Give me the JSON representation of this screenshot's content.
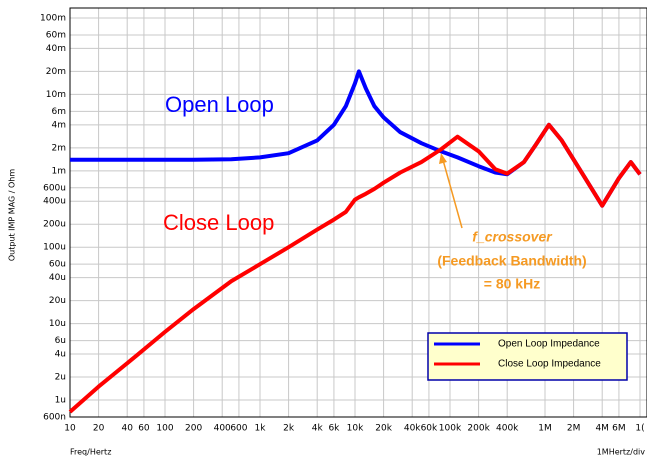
{
  "chart_data": {
    "type": "line",
    "ylabel": "Output IMP MAG / Ohm",
    "xlabel": "Freq/Hertz",
    "xnote": "1MHertz/div",
    "log_x": true,
    "log_y": true,
    "grid": true,
    "xlim": [
      10,
      10000000
    ],
    "ylim": [
      6e-07,
      0.1
    ],
    "xticks": [
      10,
      20,
      40,
      60,
      100,
      200,
      400,
      600,
      {
        "value": 1000,
        "label": "1k"
      },
      {
        "value": 2000,
        "label": "2k"
      },
      {
        "value": 4000,
        "label": "4k"
      },
      {
        "value": 6000,
        "label": "6k"
      },
      {
        "value": 10000,
        "label": "10k"
      },
      {
        "value": 20000,
        "label": "20k"
      },
      {
        "value": 40000,
        "label": "40k"
      },
      {
        "value": 60000,
        "label": "60k"
      },
      {
        "value": 100000,
        "label": "100k"
      },
      {
        "value": 200000,
        "label": "200k"
      },
      {
        "value": 400000,
        "label": "400k"
      },
      {
        "value": 1000000,
        "label": "1M"
      },
      {
        "value": 2000000,
        "label": "2M"
      },
      {
        "value": 4000000,
        "label": "4M"
      },
      {
        "value": 6000000,
        "label": "6M"
      },
      {
        "value": 10000000,
        "label": "1("
      }
    ],
    "yticks": [
      {
        "value": 0.1,
        "label": "100m"
      },
      {
        "value": 0.06,
        "label": "60m"
      },
      {
        "value": 0.04,
        "label": "40m"
      },
      {
        "value": 0.02,
        "label": "20m"
      },
      {
        "value": 0.01,
        "label": "10m"
      },
      {
        "value": 0.006,
        "label": "6m"
      },
      {
        "value": 0.004,
        "label": "4m"
      },
      {
        "value": 0.002,
        "label": "2m"
      },
      {
        "value": 0.001,
        "label": "1m"
      },
      {
        "value": 0.0006,
        "label": "600u"
      },
      {
        "value": 0.0004,
        "label": "400u"
      },
      {
        "value": 0.0002,
        "label": "200u"
      },
      {
        "value": 0.0001,
        "label": "100u"
      },
      {
        "value": 6e-05,
        "label": "60u"
      },
      {
        "value": 4e-05,
        "label": "40u"
      },
      {
        "value": 2e-05,
        "label": "20u"
      },
      {
        "value": 1e-05,
        "label": "10u"
      },
      {
        "value": 6e-06,
        "label": "6u"
      },
      {
        "value": 4e-06,
        "label": "4u"
      },
      {
        "value": 2e-06,
        "label": "2u"
      },
      {
        "value": 1e-06,
        "label": "1u"
      },
      {
        "value": 6e-07,
        "label": "600n"
      }
    ],
    "x": [
      10,
      20,
      50,
      100,
      200,
      500,
      1000,
      2000,
      4000,
      6000,
      8000,
      10000,
      11000,
      13000,
      16000,
      20000,
      30000,
      50000,
      80000,
      120000,
      200000,
      300000,
      400000,
      600000,
      800000,
      1100000,
      1500000,
      2500000,
      4000000,
      6000000,
      8000000,
      10000000
    ],
    "series": [
      {
        "name": "Open Loop Impedance",
        "color": "#0000ff",
        "values": [
          0.0014,
          0.0014,
          0.0014,
          0.0014,
          0.0014,
          0.00142,
          0.0015,
          0.0017,
          0.0025,
          0.004,
          0.007,
          0.014,
          0.02,
          0.012,
          0.007,
          0.005,
          0.0032,
          0.0023,
          0.0018,
          0.0015,
          0.00115,
          0.00095,
          0.0009,
          0.0013,
          0.0022,
          0.004,
          0.0025,
          0.0009,
          0.00035,
          0.0008,
          0.0013,
          0.0009
        ]
      },
      {
        "name": "Close Loop Impedance",
        "color": "#ff0000",
        "values": [
          7e-07,
          1.5e-06,
          3.8e-06,
          7.8e-06,
          1.55e-05,
          3.6e-05,
          6e-05,
          0.0001,
          0.00017,
          0.00023,
          0.00029,
          0.00042,
          0.00045,
          0.0005,
          0.00058,
          0.0007,
          0.00095,
          0.0013,
          0.0019,
          0.0028,
          0.0018,
          0.00105,
          0.00092,
          0.0013,
          0.0022,
          0.004,
          0.0025,
          0.0009,
          0.00035,
          0.0008,
          0.0013,
          0.0009
        ]
      }
    ],
    "annotations": [
      "Open Loop",
      "Close Loop",
      "f_crossover",
      "(Feedback Bandwidth)",
      "= 80 kHz"
    ]
  }
}
